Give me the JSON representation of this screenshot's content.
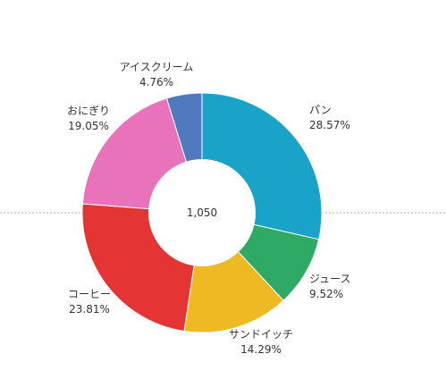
{
  "chart_data": {
    "type": "pie",
    "total_label": "1,050",
    "slices": [
      {
        "name": "パン",
        "value": 300,
        "percent_label": "28.57%",
        "color": "#1aa3c9"
      },
      {
        "name": "ジュース",
        "value": 100,
        "percent_label": "9.52%",
        "color": "#2eaa65"
      },
      {
        "name": "サンドイッチ",
        "value": 150,
        "percent_label": "14.29%",
        "color": "#efb923"
      },
      {
        "name": "コーヒー",
        "value": 250,
        "percent_label": "23.81%",
        "color": "#e43433"
      },
      {
        "name": "おにぎり",
        "value": 200,
        "percent_label": "19.05%",
        "color": "#e873bb"
      },
      {
        "name": "アイスクリーム",
        "value": 50,
        "percent_label": "4.76%",
        "color": "#5079c0"
      }
    ],
    "donut": true,
    "legend": "none",
    "reference_line": "dashed horizontal line at center"
  }
}
